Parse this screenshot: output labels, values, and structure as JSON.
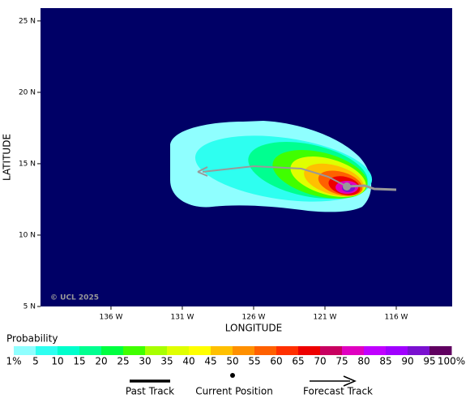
{
  "map": {
    "x_axis_label": "LONGITUDE",
    "y_axis_label": "LATITUDE",
    "lonlim": [
      140.94,
      112.08
    ],
    "latlim": [
      5,
      25.9
    ],
    "lon_ticks": [
      {
        "value": 136,
        "label": "136 W"
      },
      {
        "value": 131,
        "label": "131 W"
      },
      {
        "value": 126,
        "label": "126 W"
      },
      {
        "value": 121,
        "label": "121 W"
      },
      {
        "value": 116,
        "label": "116 W"
      }
    ],
    "lat_ticks": [
      {
        "value": 25,
        "label": "25 N"
      },
      {
        "value": 20,
        "label": "20 N"
      },
      {
        "value": 15,
        "label": "15 N"
      },
      {
        "value": 10,
        "label": "10 N"
      },
      {
        "value": 5,
        "label": "5 N"
      }
    ],
    "copyright": "© UCL 2025"
  },
  "colorbar": {
    "title": "Probability",
    "labels": [
      "1%",
      "5",
      "10",
      "15",
      "20",
      "25",
      "30",
      "35",
      "40",
      "45",
      "50",
      "55",
      "60",
      "65",
      "70",
      "75",
      "80",
      "85",
      "90",
      "95",
      "100%"
    ],
    "colors": [
      "#8fffff",
      "#2efff0",
      "#00ffcc",
      "#00ff90",
      "#00ff40",
      "#40ff00",
      "#a8ff00",
      "#e0ff00",
      "#ffff00",
      "#ffc000",
      "#ff9000",
      "#ff6000",
      "#ff3000",
      "#ee0000",
      "#c80060",
      "#e000c0",
      "#c000ff",
      "#a000ff",
      "#7a10d0",
      "#600060"
    ]
  },
  "track_legend": {
    "past": "Past Track",
    "current": "Current Position",
    "forecast": "Forecast Track"
  }
}
